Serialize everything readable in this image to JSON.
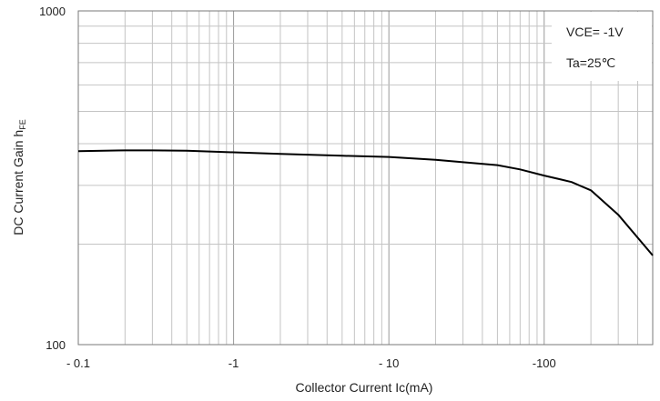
{
  "chart_data": {
    "type": "line",
    "title": "",
    "xlabel": "Collector Current   Ic(mA)",
    "ylabel_main": "DC Current Gain   h",
    "ylabel_sub": "FE",
    "x_scale": "log",
    "y_scale": "log",
    "xlim": [
      -0.1,
      -500
    ],
    "ylim": [
      100,
      1000
    ],
    "x_ticks": [
      {
        "value": -0.1,
        "label": "- 0.1"
      },
      {
        "value": -1,
        "label": "-1"
      },
      {
        "value": -10,
        "label": "- 10"
      },
      {
        "value": -100,
        "label": "-100"
      }
    ],
    "y_ticks": [
      {
        "value": 100,
        "label": "100"
      },
      {
        "value": 1000,
        "label": "1000"
      }
    ],
    "grid": true,
    "annotations": [
      "VCE= -1V",
      "Ta=25℃"
    ],
    "series": [
      {
        "color": "#000000",
        "x": [
          -0.1,
          -0.2,
          -0.3,
          -0.5,
          -1,
          -2,
          -5,
          -10,
          -20,
          -30,
          -50,
          -70,
          -100,
          -130,
          -150,
          -200,
          -300,
          -500
        ],
        "y": [
          380,
          382,
          382,
          381,
          377,
          373,
          368,
          365,
          358,
          352,
          345,
          335,
          321,
          312,
          307,
          290,
          245,
          185
        ]
      }
    ]
  }
}
